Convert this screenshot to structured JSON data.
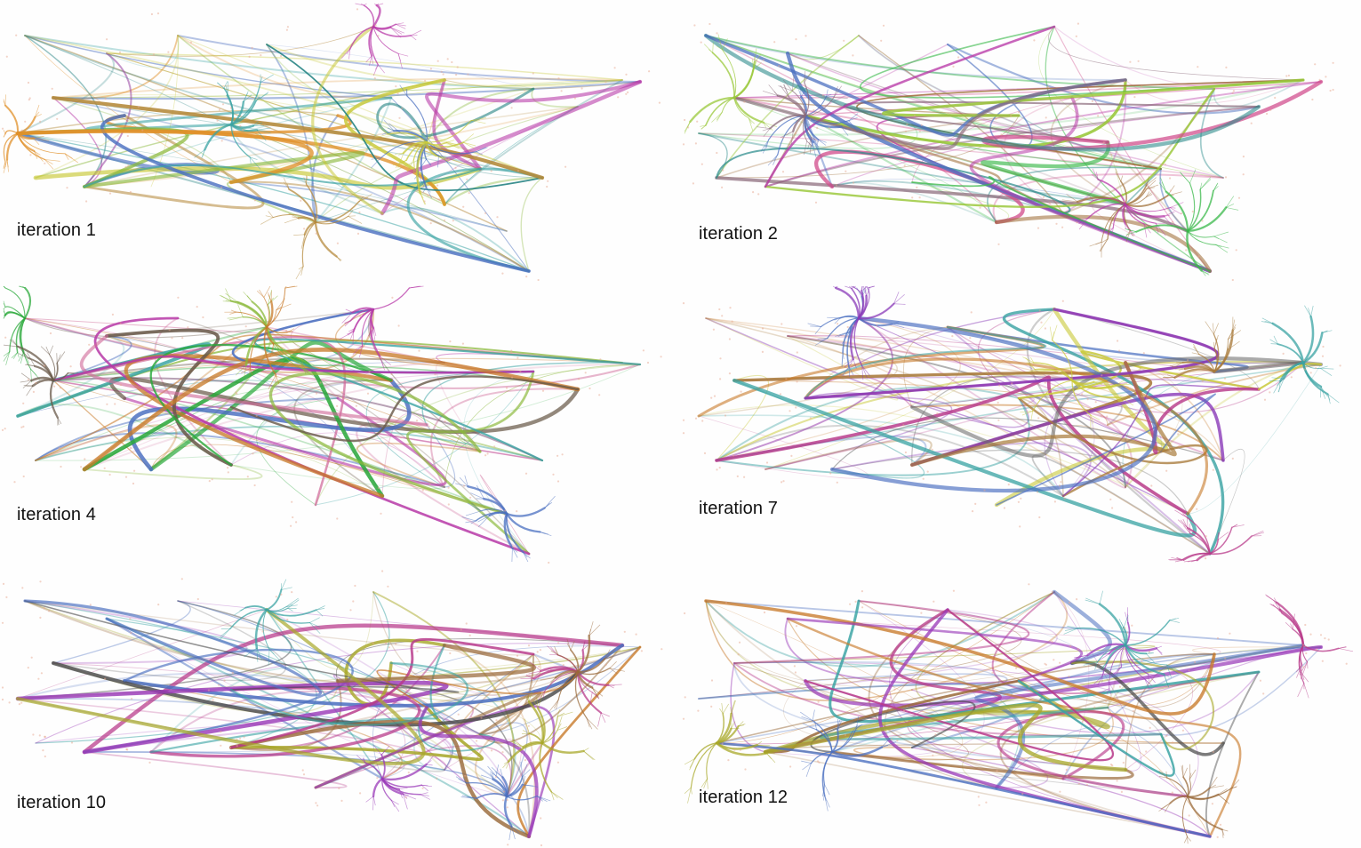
{
  "panels": [
    {
      "label": "iteration 1",
      "palette": [
        "#b58a3c",
        "#4a6fc0",
        "#b83aa8",
        "#c9c93a",
        "#e0902a",
        "#3aa3a3",
        "#8ab83a",
        "#1f7f7f"
      ]
    },
    {
      "label": "iteration 2",
      "palette": [
        "#a0703a",
        "#4a6fc0",
        "#b83aa8",
        "#9ac83a",
        "#3ab84a",
        "#8a6a7a",
        "#d04a8a",
        "#2a8a8a"
      ]
    },
    {
      "label": "iteration 4",
      "palette": [
        "#4a6fc0",
        "#8ab83a",
        "#2aa83a",
        "#b83aa8",
        "#c87a2a",
        "#6a5a4a",
        "#3aa3a3",
        "#d06a9a"
      ]
    },
    {
      "label": "iteration 7",
      "palette": [
        "#b83a8a",
        "#a87a3a",
        "#4a6fc0",
        "#3aa3a3",
        "#c9c93a",
        "#8a3ab8",
        "#c87a2a",
        "#6a6a6a"
      ]
    },
    {
      "label": "iteration 10",
      "palette": [
        "#b83a8a",
        "#9a6a3a",
        "#a8a82a",
        "#4a6fc0",
        "#9a3ab8",
        "#3aa3a3",
        "#c87a2a",
        "#4a4a4a"
      ]
    },
    {
      "label": "iteration 12",
      "palette": [
        "#b83a8a",
        "#9a6a3a",
        "#a8a82a",
        "#4a6fc0",
        "#9a3ab8",
        "#3aa3a3",
        "#c87a2a",
        "#4a4a4a"
      ]
    }
  ]
}
